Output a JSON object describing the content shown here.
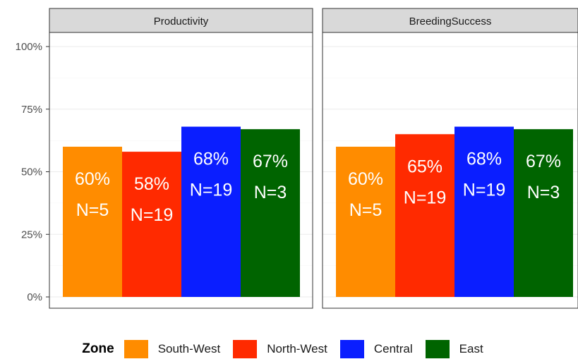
{
  "chart_data": {
    "type": "bar",
    "y_ticks": [
      "0%",
      "25%",
      "50%",
      "75%",
      "100%"
    ],
    "ylim": [
      0,
      100
    ],
    "grid": true,
    "legend": {
      "title": "Zone",
      "position": "bottom",
      "items": [
        {
          "label": "South-West",
          "color": "#ff8c00"
        },
        {
          "label": "North-West",
          "color": "#ff2a00"
        },
        {
          "label": "Central",
          "color": "#0a1eff"
        },
        {
          "label": "East",
          "color": "#006400"
        }
      ]
    },
    "panels": [
      {
        "title": "Productivity",
        "categories": [
          "South-West",
          "North-West",
          "Central",
          "East"
        ],
        "values": [
          60,
          58,
          68,
          67
        ],
        "pct_labels": [
          "60%",
          "58%",
          "68%",
          "67%"
        ],
        "n_labels": [
          "N=5",
          "N=19",
          "N=19",
          "N=3"
        ]
      },
      {
        "title": "BreedingSuccess",
        "categories": [
          "South-West",
          "North-West",
          "Central",
          "East"
        ],
        "values": [
          60,
          65,
          68,
          67
        ],
        "pct_labels": [
          "60%",
          "65%",
          "68%",
          "67%"
        ],
        "n_labels": [
          "N=5",
          "N=19",
          "N=19",
          "N=3"
        ]
      }
    ]
  }
}
